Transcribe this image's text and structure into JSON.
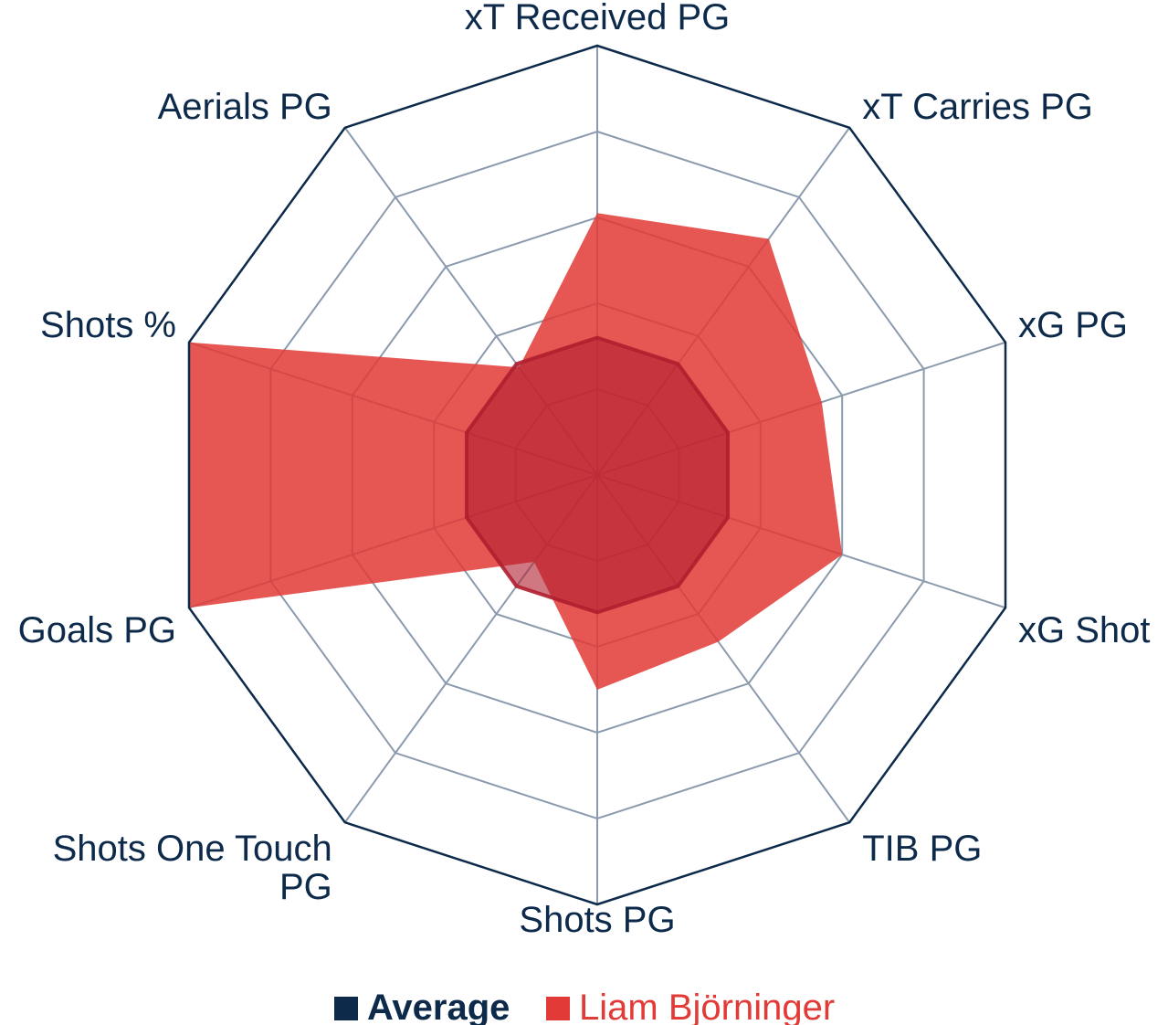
{
  "chart_data": {
    "type": "radar",
    "axes": [
      "xT Received PG",
      "xT Carries PG",
      "xG PG",
      "xG Shot",
      "TIB PG",
      "Shots PG",
      "Shots One Touch PG",
      "Goals PG",
      "Shots %",
      "Aerials PG"
    ],
    "axis_label_lines": [
      [
        "xT Received PG"
      ],
      [
        "xT Carries PG"
      ],
      [
        "xG PG"
      ],
      [
        "xG Shot"
      ],
      [
        "TIB PG"
      ],
      [
        "Shots PG"
      ],
      [
        "Shots One Touch",
        "PG"
      ],
      [
        "Goals PG"
      ],
      [
        "Shots %"
      ],
      [
        "Aerials PG"
      ]
    ],
    "range": [
      0,
      1
    ],
    "rings": 5,
    "series": [
      {
        "name": "Average",
        "color": "#0d2a4b",
        "values": [
          0.32,
          0.32,
          0.32,
          0.32,
          0.32,
          0.32,
          0.32,
          0.32,
          0.32,
          0.32
        ]
      },
      {
        "name": "Liam Björninger",
        "color": "#e23a36",
        "values": [
          0.61,
          0.68,
          0.55,
          0.6,
          0.48,
          0.5,
          0.25,
          1.0,
          1.0,
          0.31
        ]
      }
    ],
    "legend": {
      "position": "bottom",
      "entries": [
        "Average",
        "Liam Björninger"
      ]
    }
  },
  "colors": {
    "outline": "#0d2a4b",
    "grid": "#8a9bad",
    "player_fill": "#e23a36",
    "average_fill": "#b01e2e"
  }
}
